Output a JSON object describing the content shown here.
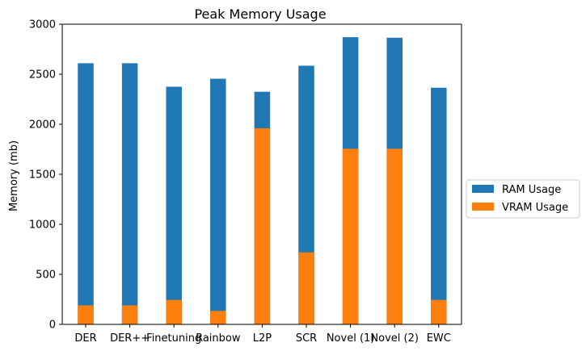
{
  "chart_data": {
    "type": "bar",
    "title": "Peak Memory Usage",
    "xlabel": "",
    "ylabel": "Memory (mb)",
    "ylim": [
      0,
      3000
    ],
    "yticks": [
      0,
      500,
      1000,
      1500,
      2000,
      2500,
      3000
    ],
    "categories": [
      "DER",
      "DER++",
      "Finetuning",
      "Rainbow",
      "L2P",
      "SCR",
      "Novel (1)",
      "Novel (2)",
      "EWC"
    ],
    "series": [
      {
        "name": "RAM Usage",
        "color": "#1f77b4",
        "values": [
          2610,
          2610,
          2375,
          2455,
          2325,
          2585,
          2870,
          2865,
          2365
        ]
      },
      {
        "name": "VRAM Usage",
        "color": "#ff7f0e",
        "values": [
          190,
          190,
          245,
          135,
          1960,
          720,
          1755,
          1755,
          245
        ]
      }
    ],
    "grid": false,
    "legend_position": "right, outside plot"
  }
}
